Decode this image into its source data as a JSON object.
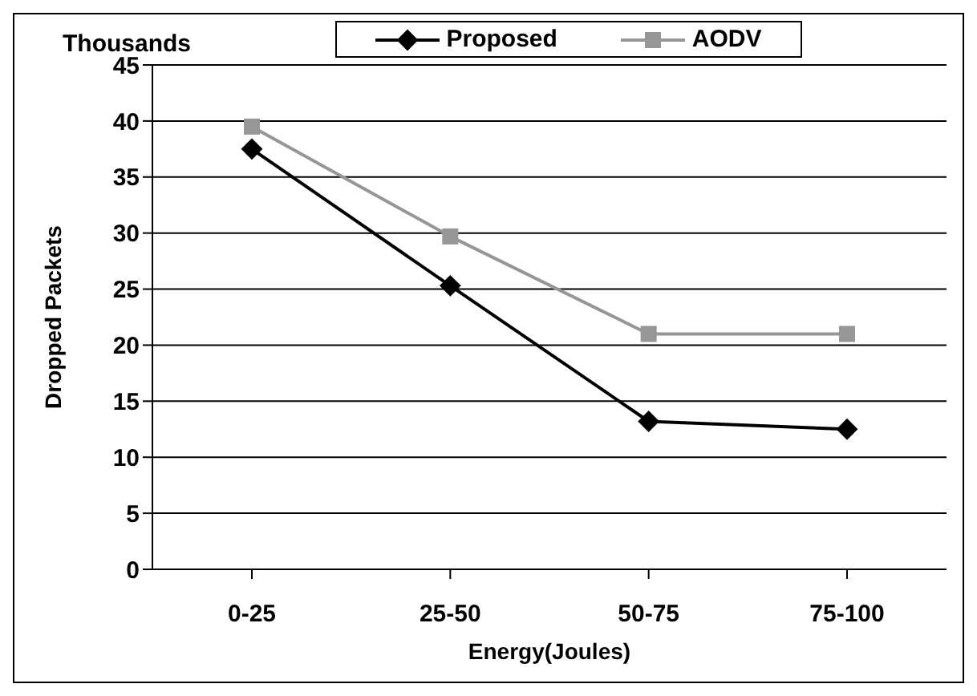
{
  "chart_data": {
    "type": "line",
    "xlabel": "Energy(Joules)",
    "ylabel": "Dropped Packets",
    "annotations": [
      "Thousands"
    ],
    "categories": [
      "0-25",
      "25-50",
      "50-75",
      "75-100"
    ],
    "series": [
      {
        "name": "Proposed",
        "color": "#000000",
        "marker": "diamond",
        "values": [
          37.5,
          25.3,
          13.2,
          12.5
        ]
      },
      {
        "name": "AODV",
        "color": "#969696",
        "marker": "square",
        "values": [
          39.5,
          29.7,
          21,
          21
        ]
      }
    ],
    "ylim": [
      0,
      45
    ],
    "yticks": [
      0,
      5,
      10,
      15,
      20,
      25,
      30,
      35,
      40,
      45
    ],
    "grid": "y",
    "legend": "top",
    "line_style": "solid"
  }
}
